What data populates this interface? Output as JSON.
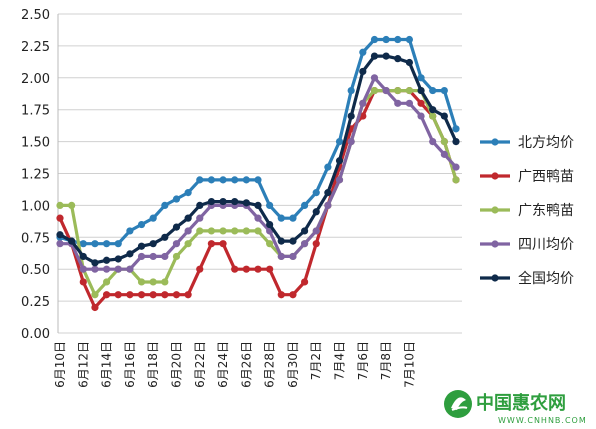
{
  "chart_data": {
    "type": "line",
    "title": "",
    "xlabel": "",
    "ylabel": "",
    "ylim": [
      0,
      2.5
    ],
    "yticks": [
      "0.00",
      "0.25",
      "0.50",
      "0.75",
      "1.00",
      "1.25",
      "1.50",
      "1.75",
      "2.00",
      "2.25",
      "2.50"
    ],
    "grid": "horizontal",
    "legend_position": "right",
    "x_labels": [
      "6月10日",
      "6月12日",
      "6月14日",
      "6月16日",
      "6月18日",
      "6月20日",
      "6月22日",
      "6月24日",
      "6月26日",
      "6月28日",
      "6月30日",
      "7月2日",
      "7月4日",
      "7月6日",
      "7月8日",
      "7月10日"
    ],
    "series": [
      {
        "name": "北方均价",
        "color": "#2c7fb8",
        "values": [
          0.75,
          0.72,
          0.7,
          0.7,
          0.7,
          0.7,
          0.8,
          0.85,
          0.9,
          1.0,
          1.05,
          1.1,
          1.2,
          1.2,
          1.2,
          1.2,
          1.2,
          1.2,
          1.0,
          0.9,
          0.9,
          1.0,
          1.1,
          1.3,
          1.5,
          1.9,
          2.2,
          2.3,
          2.3,
          2.3,
          2.3,
          2.0,
          1.9,
          1.9,
          1.6
        ]
      },
      {
        "name": "广西鸭苗",
        "color": "#c0282d",
        "values": [
          0.9,
          0.7,
          0.4,
          0.2,
          0.3,
          0.3,
          0.3,
          0.3,
          0.3,
          0.3,
          0.3,
          0.3,
          0.5,
          0.7,
          0.7,
          0.5,
          0.5,
          0.5,
          0.5,
          0.3,
          0.3,
          0.4,
          0.7,
          1.0,
          1.3,
          1.6,
          1.7,
          1.9,
          1.9,
          1.9,
          1.9,
          1.8,
          1.7,
          1.5,
          1.2
        ]
      },
      {
        "name": "广东鸭苗",
        "color": "#9bbb59",
        "values": [
          1.0,
          1.0,
          0.5,
          0.3,
          0.4,
          0.5,
          0.5,
          0.4,
          0.4,
          0.4,
          0.6,
          0.7,
          0.8,
          0.8,
          0.8,
          0.8,
          0.8,
          0.8,
          0.7,
          0.6,
          0.6,
          0.7,
          0.8,
          1.0,
          1.2,
          1.5,
          1.8,
          1.9,
          1.9,
          1.9,
          1.9,
          1.9,
          1.7,
          1.5,
          1.2
        ]
      },
      {
        "name": "四川均价",
        "color": "#8064a2",
        "values": [
          0.7,
          0.7,
          0.5,
          0.5,
          0.5,
          0.5,
          0.5,
          0.6,
          0.6,
          0.6,
          0.7,
          0.8,
          0.9,
          1.0,
          1.0,
          1.0,
          1.0,
          0.9,
          0.8,
          0.6,
          0.6,
          0.7,
          0.8,
          1.0,
          1.2,
          1.5,
          1.8,
          2.0,
          1.9,
          1.8,
          1.8,
          1.7,
          1.5,
          1.4,
          1.3
        ]
      },
      {
        "name": "全国均价",
        "color": "#0f2a4a",
        "values": [
          0.77,
          0.72,
          0.6,
          0.55,
          0.57,
          0.58,
          0.62,
          0.68,
          0.7,
          0.75,
          0.83,
          0.9,
          1.0,
          1.03,
          1.03,
          1.03,
          1.02,
          1.0,
          0.85,
          0.72,
          0.72,
          0.8,
          0.95,
          1.1,
          1.35,
          1.7,
          2.05,
          2.17,
          2.17,
          2.15,
          2.12,
          1.9,
          1.75,
          1.7,
          1.5
        ]
      }
    ]
  },
  "watermark": {
    "brand": "中国惠农网",
    "url": "WWW.CNHNB.COM",
    "color": "#2e9e3e"
  }
}
